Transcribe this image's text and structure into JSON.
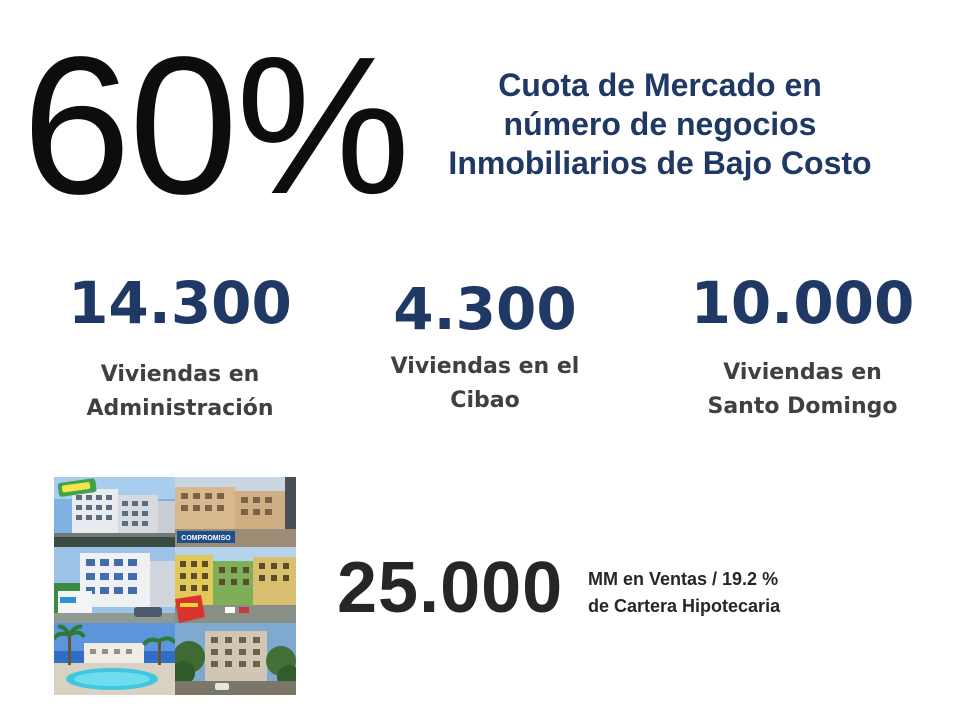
{
  "headline": {
    "value": "60%",
    "caption_lines": [
      "Cuota de Mercado en",
      "número de negocios",
      "Inmobiliarios de Bajo Costo"
    ]
  },
  "stats": [
    {
      "value": "14.300",
      "label_lines": [
        "Viviendas en",
        "Administración"
      ]
    },
    {
      "value": "4.300",
      "label_lines": [
        "Viviendas en el",
        "Cibao"
      ]
    },
    {
      "value": "10.000",
      "label_lines": [
        "Viviendas en",
        "Santo Domingo"
      ]
    }
  ],
  "collage": {
    "tiles": [
      {
        "sign": "",
        "caption": ""
      },
      {
        "sign": "",
        "caption": "COMPROMISO"
      },
      {
        "sign": "",
        "caption": ""
      },
      {
        "sign": "",
        "caption": ""
      },
      {
        "sign": "",
        "caption": ""
      },
      {
        "sign": "",
        "caption": ""
      }
    ]
  },
  "sales": {
    "value": "25.000",
    "caption_lines": [
      "MM en Ventas / 19.2 %",
      "de Cartera Hipotecaria"
    ]
  },
  "colors": {
    "accent_navy": "#1f3864",
    "label_gray": "#404040",
    "headline_black": "#0d0d0d"
  }
}
